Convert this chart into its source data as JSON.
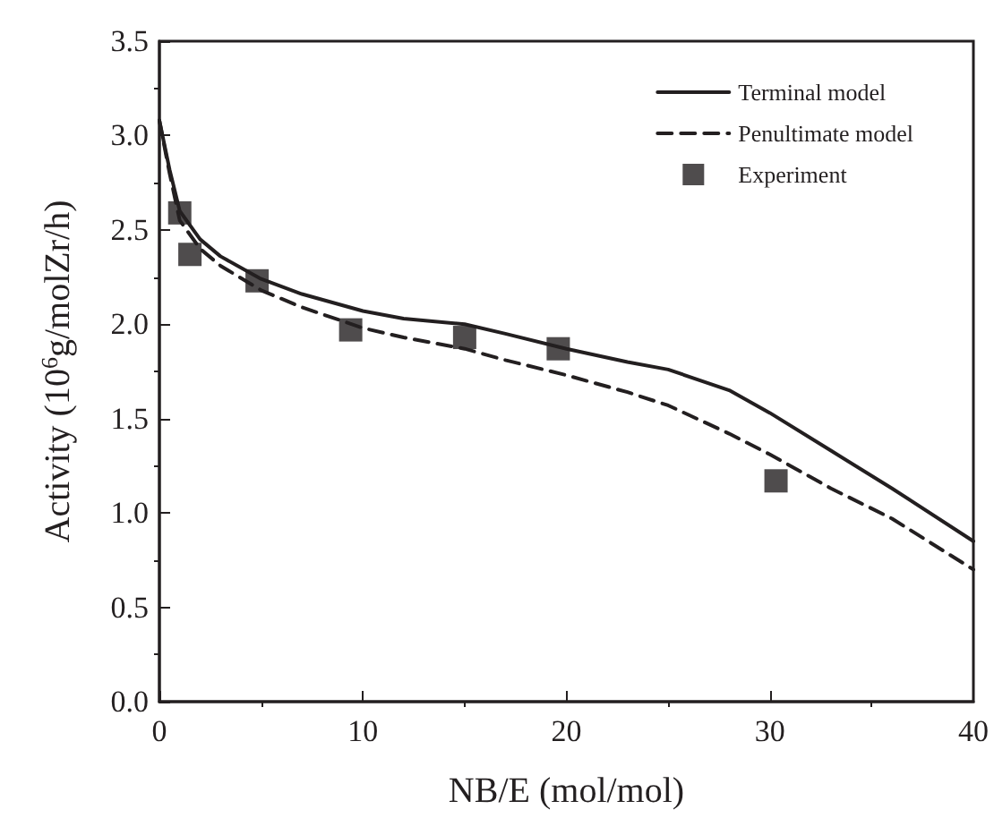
{
  "chart_data": {
    "type": "line",
    "xlabel": "NB/E (mol/mol)",
    "ylabel": "Activity (10$^{6}$g/molZr/h)",
    "xlim": [
      0,
      40
    ],
    "xticks": [
      0,
      10,
      20,
      30,
      40
    ],
    "ylim": [
      0,
      3.5
    ],
    "yticks": [
      {
        "value": 0,
        "label": "0.0"
      },
      0.5,
      {
        "value": 1,
        "label": "1.0"
      },
      1.5,
      {
        "value": 2,
        "label": "2.0"
      },
      2.5,
      {
        "value": 3,
        "label": "3.0"
      },
      3.5
    ],
    "legend": "top right",
    "grid": false,
    "series": [
      {
        "name": "Terminal model",
        "line_style": "solid",
        "marker": "none",
        "color": "#231f20",
        "x": [
          0,
          0.5,
          1,
          2,
          3,
          5,
          7,
          10,
          12,
          15,
          17,
          20,
          23,
          25,
          28,
          30,
          33,
          36,
          40
        ],
        "values": [
          3.08,
          2.82,
          2.6,
          2.45,
          2.36,
          2.24,
          2.16,
          2.07,
          2.03,
          2.0,
          1.95,
          1.87,
          1.8,
          1.76,
          1.65,
          1.53,
          1.33,
          1.13,
          0.85
        ]
      },
      {
        "name": "Penultimate model",
        "line_style": "dashed",
        "marker": "none",
        "color": "#231f20",
        "x": [
          0,
          0.5,
          1,
          2,
          3,
          5,
          7,
          10,
          12,
          15,
          17,
          20,
          23,
          25,
          28,
          30,
          33,
          36,
          40
        ],
        "values": [
          3.08,
          2.8,
          2.55,
          2.4,
          2.31,
          2.18,
          2.09,
          1.98,
          1.93,
          1.87,
          1.81,
          1.73,
          1.64,
          1.57,
          1.42,
          1.31,
          1.13,
          0.97,
          0.7
        ]
      },
      {
        "name": "Experiment",
        "type": "scatter",
        "marker": "square",
        "color": "#231f20",
        "x": [
          1,
          1.5,
          4.8,
          9.4,
          15,
          19.6,
          30.3
        ],
        "values": [
          2.59,
          2.37,
          2.23,
          1.97,
          1.93,
          1.87,
          1.17
        ]
      }
    ]
  }
}
